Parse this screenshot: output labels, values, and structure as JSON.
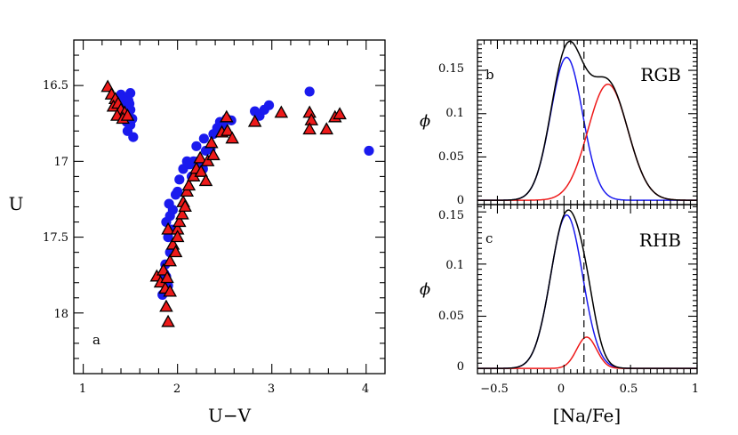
{
  "chart_data": [
    {
      "type": "scatter",
      "panel_label": "a",
      "xlabel": "U−V",
      "ylabel": "U",
      "xlim": [
        0.9,
        4.2
      ],
      "ylim": [
        18.4,
        16.2
      ],
      "y_inverted": true,
      "xticks": [
        "1",
        "2",
        "3",
        "4"
      ],
      "yticks": [
        "16.5",
        "17",
        "17.5",
        "18"
      ],
      "series": [
        {
          "marker": "circle",
          "color": "#1a1aee",
          "points": [
            [
              1.4,
              16.56
            ],
            [
              1.45,
              16.58
            ],
            [
              1.48,
              16.6
            ],
            [
              1.5,
              16.55
            ],
            [
              1.42,
              16.62
            ],
            [
              1.46,
              16.64
            ],
            [
              1.5,
              16.66
            ],
            [
              1.44,
              16.68
            ],
            [
              1.48,
              16.7
            ],
            [
              1.52,
              16.72
            ],
            [
              1.46,
              16.74
            ],
            [
              1.5,
              16.76
            ],
            [
              1.47,
              16.8
            ],
            [
              1.53,
              16.84
            ],
            [
              1.43,
              16.66
            ],
            [
              1.49,
              16.62
            ],
            [
              1.38,
              16.58
            ],
            [
              1.87,
              17.68
            ],
            [
              1.88,
              17.76
            ],
            [
              1.84,
              17.88
            ],
            [
              1.9,
              17.82
            ],
            [
              1.86,
              17.74
            ],
            [
              1.92,
              17.6
            ],
            [
              1.9,
              17.5
            ],
            [
              1.88,
              17.4
            ],
            [
              1.92,
              17.36
            ],
            [
              1.91,
              17.28
            ],
            [
              1.95,
              17.32
            ],
            [
              1.94,
              17.45
            ],
            [
              1.98,
              17.22
            ],
            [
              2.02,
              17.12
            ],
            [
              2.06,
              17.05
            ],
            [
              2.0,
              17.2
            ],
            [
              2.1,
              17.0
            ],
            [
              2.13,
              17.02
            ],
            [
              2.17,
              17.0
            ],
            [
              2.22,
              17.0
            ],
            [
              2.27,
              17.05
            ],
            [
              2.15,
              17.1
            ],
            [
              2.3,
              16.93
            ],
            [
              2.35,
              16.92
            ],
            [
              2.28,
              16.85
            ],
            [
              2.38,
              16.82
            ],
            [
              2.42,
              16.78
            ],
            [
              2.45,
              16.74
            ],
            [
              2.48,
              16.76
            ],
            [
              2.52,
              16.72
            ],
            [
              2.57,
              16.73
            ],
            [
              2.2,
              16.9
            ],
            [
              2.82,
              16.67
            ],
            [
              2.87,
              16.7
            ],
            [
              2.92,
              16.66
            ],
            [
              2.97,
              16.63
            ],
            [
              3.4,
              16.54
            ],
            [
              4.03,
              16.93
            ]
          ]
        },
        {
          "marker": "triangle",
          "color": "#ee1a1a",
          "points": [
            [
              1.26,
              16.51
            ],
            [
              1.3,
              16.56
            ],
            [
              1.34,
              16.59
            ],
            [
              1.32,
              16.64
            ],
            [
              1.37,
              16.62
            ],
            [
              1.4,
              16.66
            ],
            [
              1.44,
              16.68
            ],
            [
              1.36,
              16.7
            ],
            [
              1.42,
              16.72
            ],
            [
              1.47,
              16.7
            ],
            [
              1.78,
              17.76
            ],
            [
              1.82,
              17.8
            ],
            [
              1.85,
              17.72
            ],
            [
              1.87,
              17.84
            ],
            [
              1.88,
              17.96
            ],
            [
              1.9,
              18.06
            ],
            [
              1.92,
              17.86
            ],
            [
              1.89,
              17.77
            ],
            [
              1.92,
              17.66
            ],
            [
              1.95,
              17.55
            ],
            [
              1.98,
              17.6
            ],
            [
              1.9,
              17.45
            ],
            [
              2.0,
              17.45
            ],
            [
              2.02,
              17.4
            ],
            [
              2.05,
              17.35
            ],
            [
              2.06,
              17.27
            ],
            [
              2.1,
              17.2
            ],
            [
              2.08,
              17.3
            ],
            [
              2.0,
              17.5
            ],
            [
              2.12,
              17.16
            ],
            [
              2.17,
              17.1
            ],
            [
              2.2,
              17.05
            ],
            [
              2.25,
              17.07
            ],
            [
              2.3,
              17.13
            ],
            [
              2.24,
              16.98
            ],
            [
              2.32,
              17.0
            ],
            [
              2.38,
              16.96
            ],
            [
              2.36,
              16.88
            ],
            [
              2.47,
              16.81
            ],
            [
              2.53,
              16.8
            ],
            [
              2.58,
              16.85
            ],
            [
              2.52,
              16.71
            ],
            [
              2.82,
              16.74
            ],
            [
              3.1,
              16.68
            ],
            [
              3.4,
              16.68
            ],
            [
              3.42,
              16.73
            ],
            [
              3.4,
              16.79
            ],
            [
              3.58,
              16.79
            ],
            [
              3.67,
              16.71
            ],
            [
              3.72,
              16.69
            ]
          ]
        }
      ]
    },
    {
      "type": "line",
      "panel_label": "b",
      "title": "RGB",
      "ylabel": "ϕ",
      "xlim": [
        -0.65,
        1.0
      ],
      "ylim": [
        -0.005,
        0.185
      ],
      "yticks": [
        "0",
        "0.05",
        "0.1",
        "0.15"
      ],
      "vline_x": 0.15,
      "series": [
        {
          "color": "#1a1aee",
          "kind": "gauss",
          "mu": 0.02,
          "sigma": 0.12,
          "amp": 0.165
        },
        {
          "color": "#ee1a1a",
          "kind": "gauss",
          "mu": 0.33,
          "sigma": 0.15,
          "amp": 0.134
        },
        {
          "color": "#000000",
          "kind": "sum"
        }
      ]
    },
    {
      "type": "line",
      "panel_label": "c",
      "title": "RHB",
      "ylabel": "ϕ",
      "xlabel": "[Na/Fe]",
      "xlim": [
        -0.65,
        1.0
      ],
      "ylim": [
        -0.005,
        0.157
      ],
      "xticks": [
        "−0.5",
        "0",
        "0.5",
        "1"
      ],
      "yticks": [
        "0",
        "0.05",
        "0.1",
        "0.15"
      ],
      "vline_x": 0.15,
      "series": [
        {
          "color": "#1a1aee",
          "kind": "gauss",
          "mu": 0.02,
          "sigma": 0.12,
          "amp": 0.147
        },
        {
          "color": "#ee1a1a",
          "kind": "gauss",
          "mu": 0.17,
          "sigma": 0.075,
          "amp": 0.03
        },
        {
          "color": "#000000",
          "kind": "sum"
        }
      ]
    }
  ]
}
